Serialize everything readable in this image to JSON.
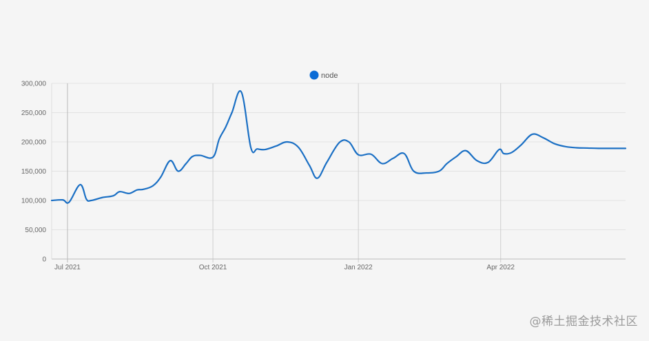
{
  "watermark": "@稀土掘金技术社区",
  "chart_data": {
    "type": "line",
    "title": "",
    "xlabel": "",
    "ylabel": "",
    "legend": {
      "position": "top-center",
      "entries": [
        "node"
      ]
    },
    "grid": true,
    "colors": {
      "series": "#1a6fc4",
      "legend_marker": "#0a6bd6",
      "grid": "#e2e2e2",
      "axis": "#bbbbbb"
    },
    "ylim": [
      0,
      300000
    ],
    "yticks": [
      0,
      50000,
      100000,
      150000,
      200000,
      250000,
      300000
    ],
    "ytick_labels": [
      "0",
      "50,000",
      "100,000",
      "150,000",
      "200,000",
      "250,000",
      "300,000"
    ],
    "xlim": [
      "2021-06-21",
      "2022-06-19"
    ],
    "xticks": [
      "2021-07-01",
      "2021-10-01",
      "2022-01-01",
      "2022-04-01"
    ],
    "xtick_labels": [
      "Jul 2021",
      "Oct 2021",
      "Jan 2022",
      "Apr 2022"
    ],
    "series": [
      {
        "name": "node",
        "x": [
          "2021-06-21",
          "2021-06-28",
          "2021-07-02",
          "2021-07-09",
          "2021-07-13",
          "2021-07-16",
          "2021-07-23",
          "2021-07-30",
          "2021-08-03",
          "2021-08-09",
          "2021-08-14",
          "2021-08-18",
          "2021-08-24",
          "2021-08-29",
          "2021-09-04",
          "2021-09-09",
          "2021-09-14",
          "2021-09-18",
          "2021-09-23",
          "2021-10-01",
          "2021-10-05",
          "2021-10-09",
          "2021-10-13",
          "2021-10-19",
          "2021-10-25",
          "2021-10-29",
          "2021-11-03",
          "2021-11-10",
          "2021-11-17",
          "2021-11-24",
          "2021-12-01",
          "2021-12-06",
          "2021-12-12",
          "2021-12-20",
          "2021-12-26",
          "2022-01-01",
          "2022-01-09",
          "2022-01-16",
          "2022-01-23",
          "2022-01-30",
          "2022-02-05",
          "2022-02-13",
          "2022-02-21",
          "2022-02-26",
          "2022-03-04",
          "2022-03-10",
          "2022-03-17",
          "2022-03-24",
          "2022-03-31",
          "2022-04-03",
          "2022-04-08",
          "2022-04-14",
          "2022-04-21",
          "2022-04-28",
          "2022-05-05",
          "2022-05-12",
          "2022-05-19",
          "2022-05-26",
          "2022-06-02",
          "2022-06-19"
        ],
        "values": [
          100000,
          101000,
          97000,
          127000,
          102000,
          100000,
          105000,
          108000,
          115000,
          112000,
          118000,
          119000,
          125000,
          140000,
          168000,
          150000,
          163000,
          175000,
          177000,
          174000,
          205000,
          225000,
          250000,
          285000,
          190000,
          188000,
          187000,
          193000,
          200000,
          191000,
          160000,
          138000,
          165000,
          199000,
          200000,
          178000,
          179000,
          163000,
          172000,
          180000,
          150000,
          147000,
          150000,
          163000,
          175000,
          185000,
          168000,
          165000,
          187000,
          180000,
          182000,
          195000,
          213000,
          207000,
          197000,
          192000,
          190000,
          189500,
          189000,
          189000
        ]
      }
    ]
  }
}
